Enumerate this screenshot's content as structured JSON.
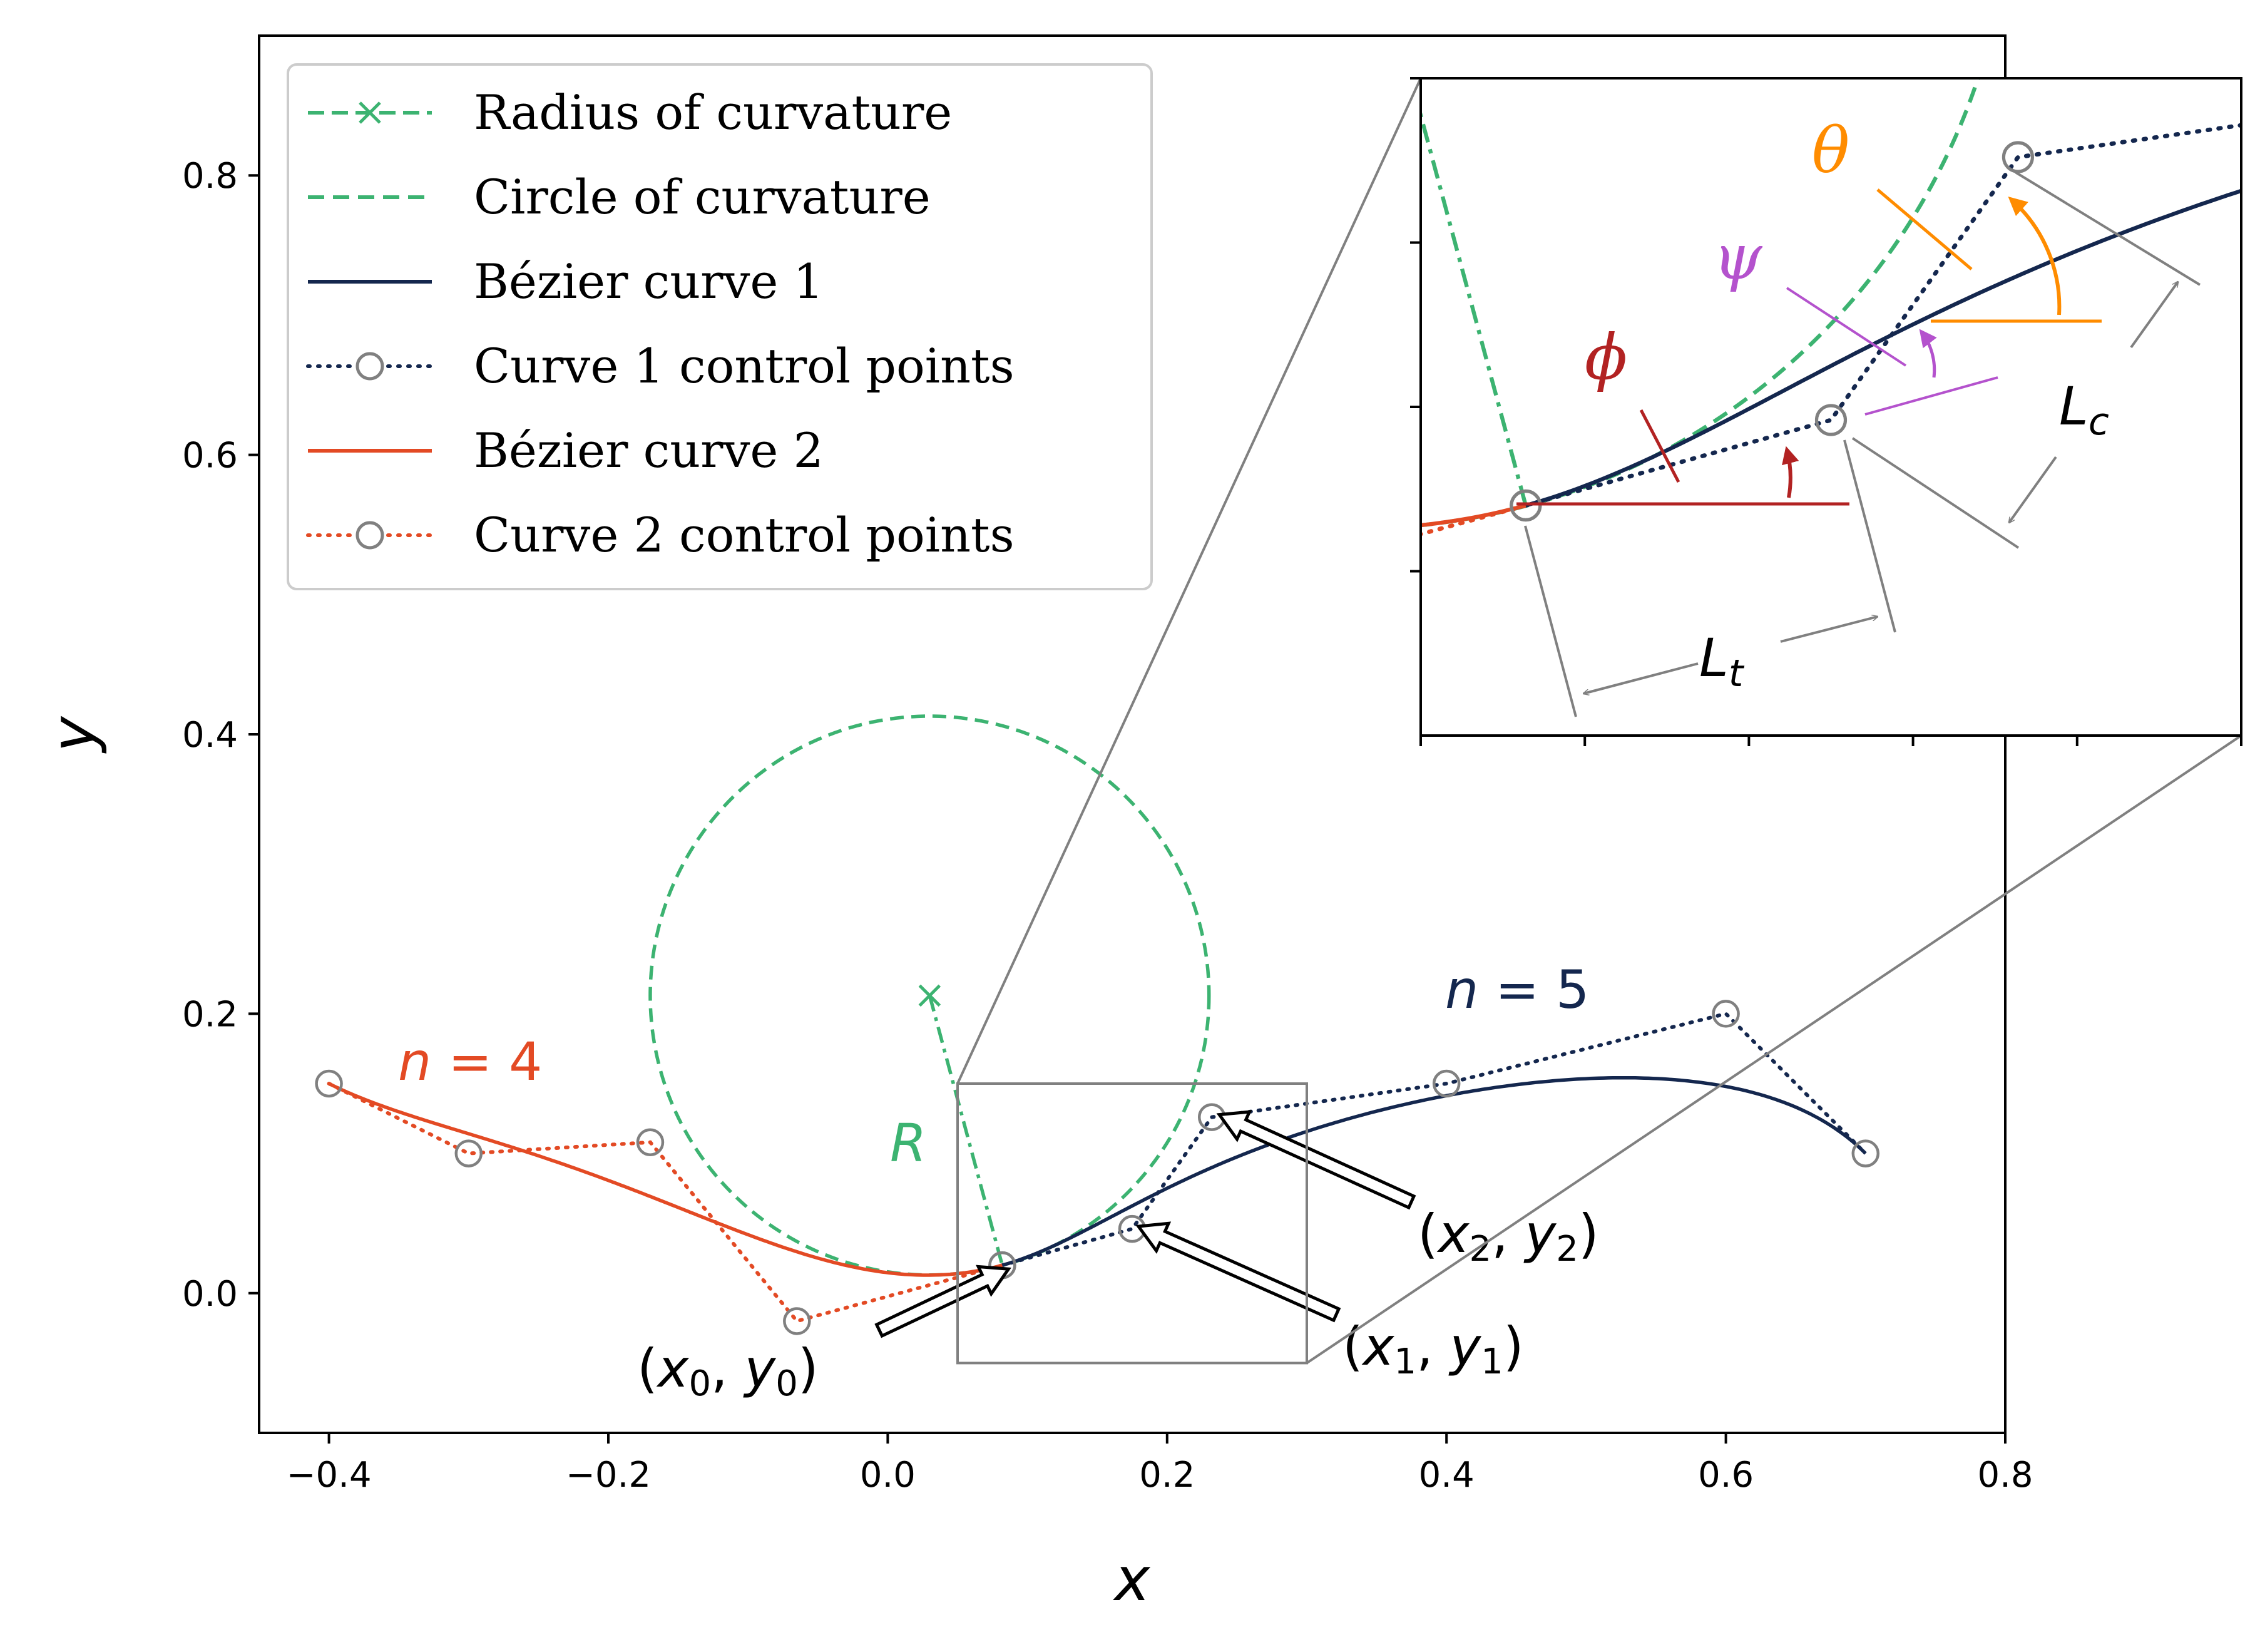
{
  "chart_data": {
    "type": "line",
    "xlabel": "x",
    "ylabel": "y",
    "xlim": [
      -0.45,
      0.8
    ],
    "ylim": [
      -0.1,
      0.9
    ],
    "xticks": [
      -0.4,
      -0.2,
      0.0,
      0.2,
      0.4,
      0.6,
      0.8
    ],
    "xtick_labels": [
      "−0.4",
      "−0.2",
      "0.0",
      "0.2",
      "0.4",
      "0.6",
      "0.8"
    ],
    "yticks": [
      0.0,
      0.2,
      0.4,
      0.6,
      0.8
    ],
    "ytick_labels": [
      "0.0",
      "0.2",
      "0.4",
      "0.6",
      "0.8"
    ],
    "grid": false,
    "legend_position": "top-left",
    "colors": {
      "green": "#3cb371",
      "navy": "#14274e",
      "orange_red": "#e34a24",
      "control_marker": "#808080",
      "zoom_box": "#808080",
      "theta": "#ff8c00",
      "psi": "#b452cd",
      "phi": "#b22222"
    },
    "series": [
      {
        "name": "Radius of curvature",
        "style": "dash-dot with x marker",
        "x": [
          0.03,
          0.082
        ],
        "y": [
          0.213,
          0.02
        ]
      },
      {
        "name": "Circle of curvature",
        "style": "dashed circle",
        "center": [
          0.03,
          0.213
        ],
        "radius": 0.2
      },
      {
        "name": "Bézier curve 1",
        "style": "solid",
        "degree": 5,
        "control_points": [
          [
            0.082,
            0.02
          ],
          [
            0.175,
            0.046
          ],
          [
            0.232,
            0.126
          ],
          [
            0.4,
            0.15
          ],
          [
            0.6,
            0.2
          ],
          [
            0.7,
            0.1
          ]
        ]
      },
      {
        "name": "Curve 1 control points",
        "style": "dotted with open circle markers",
        "x": [
          0.082,
          0.175,
          0.232,
          0.4,
          0.6,
          0.7
        ],
        "y": [
          0.02,
          0.046,
          0.126,
          0.15,
          0.2,
          0.1
        ]
      },
      {
        "name": "Bézier curve 2",
        "style": "solid",
        "degree": 4,
        "control_points": [
          [
            0.082,
            0.02
          ],
          [
            -0.065,
            -0.02
          ],
          [
            -0.17,
            0.108
          ],
          [
            -0.3,
            0.1
          ],
          [
            -0.4,
            0.15
          ]
        ]
      },
      {
        "name": "Curve 2 control points",
        "style": "dotted with open circle markers",
        "x": [
          -0.4,
          -0.3,
          -0.17,
          -0.065,
          0.082
        ],
        "y": [
          0.15,
          0.1,
          0.108,
          -0.02,
          0.02
        ]
      }
    ],
    "zoom_region": {
      "xlim": [
        0.05,
        0.3
      ],
      "ylim": [
        -0.05,
        0.15
      ]
    },
    "annotations": {
      "n4": "n = 4",
      "n5": "n = 5",
      "R": "R",
      "p0": "(x0, y0)",
      "p1": "(x1, y1)",
      "p2": "(x2, y2)",
      "theta": "θ",
      "psi": "ψ",
      "phi": "ϕ",
      "Lt": "Lt",
      "Lc": "Lc"
    }
  }
}
